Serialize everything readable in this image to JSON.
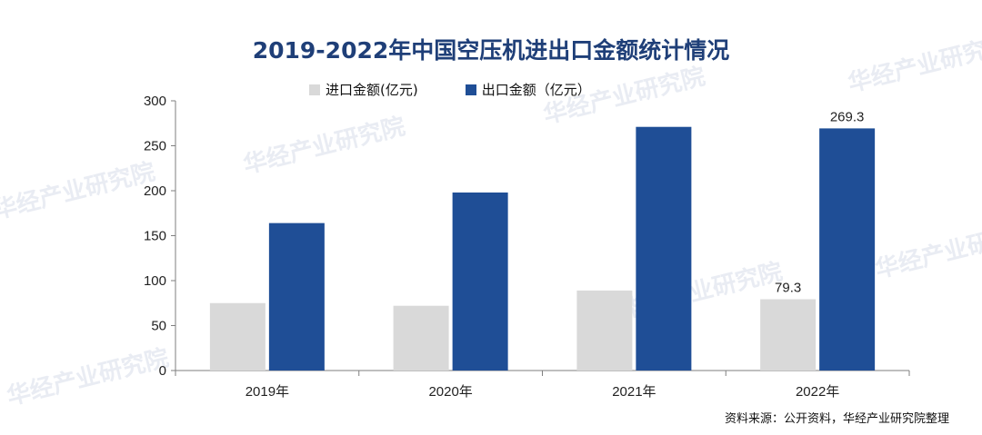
{
  "watermark": "华经产业研究院",
  "source_text": "资料来源：公开资料，华经产业研究院整理",
  "colors": {
    "import": "#d9d9d9",
    "export": "#1f4e96",
    "title": "#1f3f78"
  },
  "chart_data": {
    "type": "bar",
    "title": "2019-2022年中国空压机进出口金额统计情况",
    "categories": [
      "2019年",
      "2020年",
      "2021年",
      "2022年"
    ],
    "series": [
      {
        "name": "进口金额(亿元)",
        "values": [
          75,
          72,
          89,
          79.3
        ],
        "color": "#d9d9d9"
      },
      {
        "name": "出口金额（亿元）",
        "values": [
          164,
          198,
          271,
          269.3
        ],
        "color": "#1f4e96"
      }
    ],
    "ylim": [
      0,
      300
    ],
    "yticks": [
      "0",
      "50",
      "100",
      "150",
      "200",
      "250",
      "300"
    ],
    "data_labels": [
      {
        "series": 0,
        "index": 3,
        "text": "79.3"
      },
      {
        "series": 1,
        "index": 3,
        "text": "269.3"
      }
    ],
    "legend_position": "top-center",
    "grid": false
  }
}
